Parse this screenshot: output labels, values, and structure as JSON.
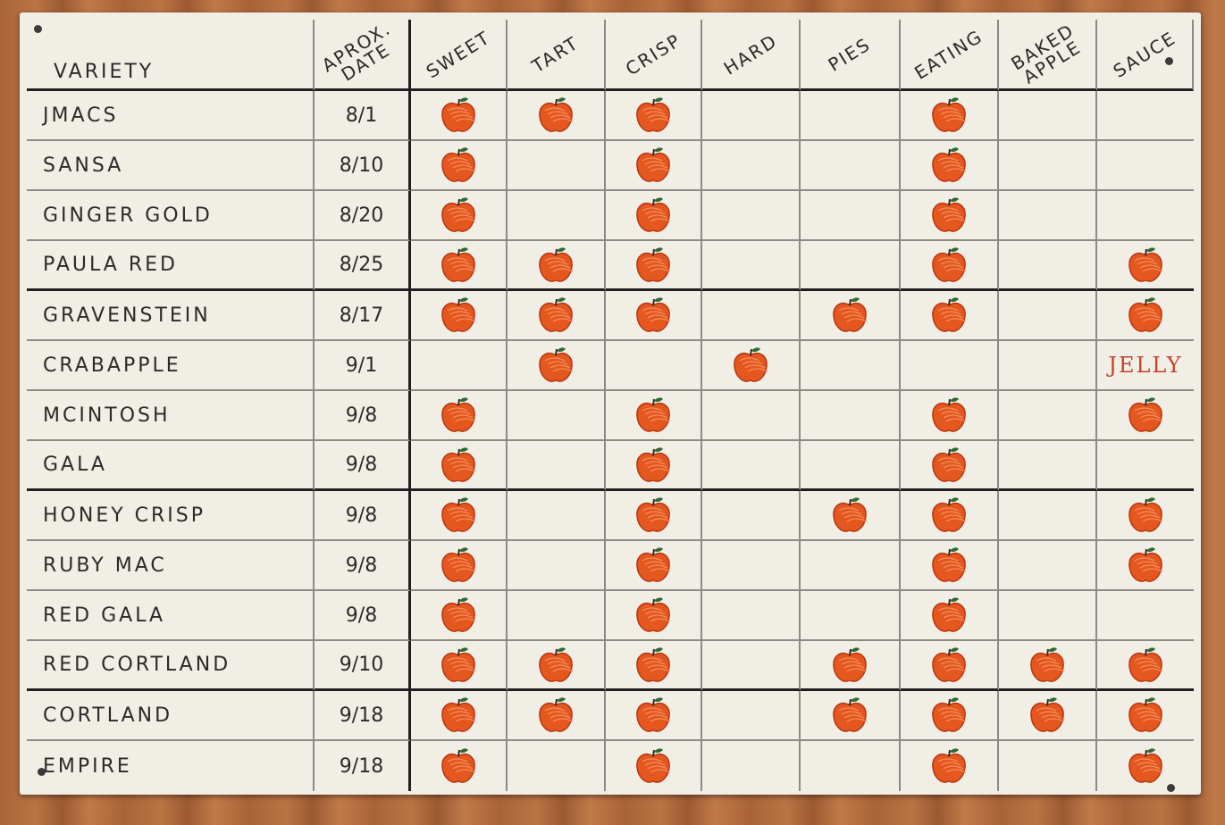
{
  "headers": {
    "variety": "VARIETY",
    "date": "APROX.\nDATE",
    "uses": [
      "SWEET",
      "TART",
      "CRISP",
      "HARD",
      "PIES",
      "EATING",
      "BAKED\nAPPLE",
      "SAUCE"
    ]
  },
  "rows": [
    {
      "variety": "JMACS",
      "date": "8/1",
      "marks": [
        "apple",
        "apple",
        "apple",
        "",
        "",
        "apple",
        "",
        ""
      ]
    },
    {
      "variety": "SANSA",
      "date": "8/10",
      "marks": [
        "apple",
        "",
        "apple",
        "",
        "",
        "apple",
        "",
        ""
      ]
    },
    {
      "variety": "GINGER GOLD",
      "date": "8/20",
      "marks": [
        "apple",
        "",
        "apple",
        "",
        "",
        "apple",
        "",
        ""
      ]
    },
    {
      "variety": "PAULA RED",
      "date": "8/25",
      "marks": [
        "apple",
        "apple",
        "apple",
        "",
        "",
        "apple",
        "",
        "apple"
      ]
    },
    {
      "variety": "GRAVENSTEIN",
      "date": "8/17",
      "marks": [
        "apple",
        "apple",
        "apple",
        "",
        "apple",
        "apple",
        "",
        "apple"
      ]
    },
    {
      "variety": "CRABAPPLE",
      "date": "9/1",
      "marks": [
        "",
        "apple",
        "",
        "apple",
        "",
        "",
        "",
        "JELLY"
      ]
    },
    {
      "variety": "MCINTOSH",
      "date": "9/8",
      "marks": [
        "apple",
        "",
        "apple",
        "",
        "",
        "apple",
        "",
        "apple"
      ]
    },
    {
      "variety": "GALA",
      "date": "9/8",
      "marks": [
        "apple",
        "",
        "apple",
        "",
        "",
        "apple",
        "",
        ""
      ]
    },
    {
      "variety": "HONEY CRISP",
      "date": "9/8",
      "marks": [
        "apple",
        "",
        "apple",
        "",
        "apple",
        "apple",
        "",
        "apple"
      ]
    },
    {
      "variety": "RUBY MAC",
      "date": "9/8",
      "marks": [
        "apple",
        "",
        "apple",
        "",
        "",
        "apple",
        "",
        "apple"
      ]
    },
    {
      "variety": "RED GALA",
      "date": "9/8",
      "marks": [
        "apple",
        "",
        "apple",
        "",
        "",
        "apple",
        "",
        ""
      ]
    },
    {
      "variety": "RED CORTLAND",
      "date": "9/10",
      "marks": [
        "apple",
        "apple",
        "apple",
        "",
        "apple",
        "apple",
        "apple",
        "apple"
      ]
    },
    {
      "variety": "CORTLAND",
      "date": "9/18",
      "marks": [
        "apple",
        "apple",
        "apple",
        "",
        "apple",
        "apple",
        "apple",
        "apple"
      ]
    },
    {
      "variety": "EMPIRE",
      "date": "9/18",
      "marks": [
        "apple",
        "",
        "apple",
        "",
        "",
        "apple",
        "",
        "apple"
      ]
    }
  ],
  "colors": {
    "apple": "#e4571f",
    "leaf": "#2f6a35",
    "jelly": "#c4422a"
  }
}
